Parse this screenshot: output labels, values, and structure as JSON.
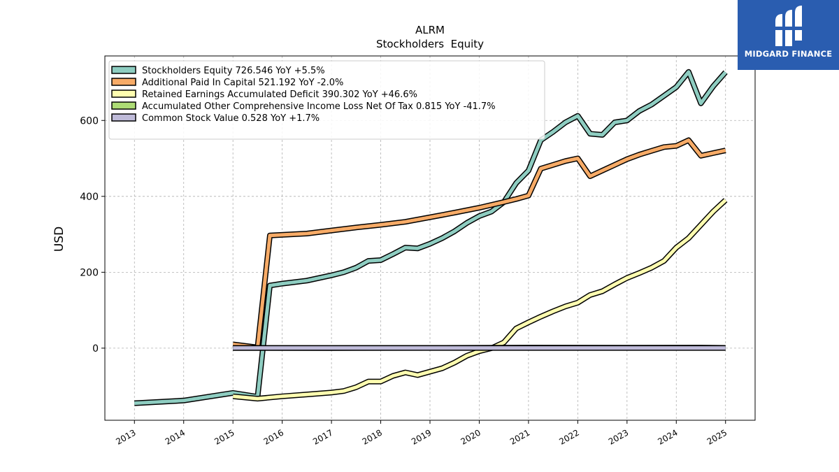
{
  "brand": {
    "name": "MIDGARD FINANCE",
    "bg_color": "#2a5db0"
  },
  "chart_data": {
    "type": "line",
    "title": "ALRM",
    "subtitle": "Stockholders  Equity",
    "ylabel": "USD",
    "xlabel": "",
    "xlim": [
      2012.4,
      2025.6
    ],
    "ylim": [
      -190,
      770
    ],
    "yticks": [
      0,
      200,
      400,
      600
    ],
    "xticks": [
      2013,
      2014,
      2015,
      2016,
      2017,
      2018,
      2019,
      2020,
      2021,
      2022,
      2023,
      2024,
      2025
    ],
    "grid": true,
    "legend_position": "top-left",
    "series": [
      {
        "name": "Stockholders Equity  726.546 YoY +5.5%",
        "color": "#8ecdc1",
        "points": [
          [
            2013.0,
            -145
          ],
          [
            2014.0,
            -138
          ],
          [
            2015.0,
            -118
          ],
          [
            2015.5,
            -128
          ],
          [
            2015.75,
            165
          ],
          [
            2016.0,
            170
          ],
          [
            2016.5,
            178
          ],
          [
            2017.0,
            192
          ],
          [
            2017.25,
            200
          ],
          [
            2017.5,
            212
          ],
          [
            2017.75,
            230
          ],
          [
            2018.0,
            232
          ],
          [
            2018.25,
            248
          ],
          [
            2018.5,
            265
          ],
          [
            2018.75,
            263
          ],
          [
            2019.0,
            275
          ],
          [
            2019.25,
            290
          ],
          [
            2019.5,
            308
          ],
          [
            2019.75,
            330
          ],
          [
            2020.0,
            348
          ],
          [
            2020.25,
            360
          ],
          [
            2020.5,
            385
          ],
          [
            2020.75,
            435
          ],
          [
            2021.0,
            468
          ],
          [
            2021.25,
            548
          ],
          [
            2021.5,
            570
          ],
          [
            2021.75,
            595
          ],
          [
            2022.0,
            612
          ],
          [
            2022.25,
            565
          ],
          [
            2022.5,
            562
          ],
          [
            2022.75,
            595
          ],
          [
            2023.0,
            600
          ],
          [
            2023.25,
            625
          ],
          [
            2023.5,
            642
          ],
          [
            2023.75,
            665
          ],
          [
            2024.0,
            688
          ],
          [
            2024.25,
            728
          ],
          [
            2024.5,
            645
          ],
          [
            2024.75,
            690
          ],
          [
            2025.0,
            727
          ]
        ]
      },
      {
        "name": "Additional Paid In Capital  521.192 YoY -2.0%",
        "color": "#f7ab67",
        "points": [
          [
            2015.0,
            10
          ],
          [
            2015.5,
            2
          ],
          [
            2015.75,
            297
          ],
          [
            2016.5,
            302
          ],
          [
            2017.0,
            310
          ],
          [
            2017.5,
            318
          ],
          [
            2018.0,
            325
          ],
          [
            2018.5,
            333
          ],
          [
            2019.0,
            345
          ],
          [
            2019.5,
            357
          ],
          [
            2020.0,
            370
          ],
          [
            2020.5,
            385
          ],
          [
            2020.75,
            393
          ],
          [
            2021.0,
            402
          ],
          [
            2021.25,
            473
          ],
          [
            2021.5,
            483
          ],
          [
            2021.75,
            493
          ],
          [
            2022.0,
            500
          ],
          [
            2022.25,
            453
          ],
          [
            2022.5,
            468
          ],
          [
            2022.75,
            483
          ],
          [
            2023.0,
            498
          ],
          [
            2023.25,
            510
          ],
          [
            2023.5,
            520
          ],
          [
            2023.75,
            530
          ],
          [
            2024.0,
            533
          ],
          [
            2024.25,
            548
          ],
          [
            2024.5,
            507
          ],
          [
            2024.75,
            514
          ],
          [
            2025.0,
            521
          ]
        ]
      },
      {
        "name": "Retained Earnings Accumulated Deficit  390.302 YoY +46.6%",
        "color": "#fefdb0",
        "points": [
          [
            2015.0,
            -127
          ],
          [
            2015.5,
            -133
          ],
          [
            2016.0,
            -127
          ],
          [
            2016.5,
            -122
          ],
          [
            2017.0,
            -117
          ],
          [
            2017.25,
            -113
          ],
          [
            2017.5,
            -103
          ],
          [
            2017.75,
            -88
          ],
          [
            2018.0,
            -88
          ],
          [
            2018.25,
            -73
          ],
          [
            2018.5,
            -64
          ],
          [
            2018.75,
            -71
          ],
          [
            2019.0,
            -62
          ],
          [
            2019.25,
            -53
          ],
          [
            2019.5,
            -38
          ],
          [
            2019.75,
            -20
          ],
          [
            2020.0,
            -8
          ],
          [
            2020.25,
            0
          ],
          [
            2020.5,
            15
          ],
          [
            2020.75,
            52
          ],
          [
            2021.0,
            68
          ],
          [
            2021.25,
            83
          ],
          [
            2021.5,
            97
          ],
          [
            2021.75,
            110
          ],
          [
            2022.0,
            120
          ],
          [
            2022.25,
            140
          ],
          [
            2022.5,
            150
          ],
          [
            2022.75,
            168
          ],
          [
            2023.0,
            185
          ],
          [
            2023.25,
            198
          ],
          [
            2023.5,
            212
          ],
          [
            2023.75,
            230
          ],
          [
            2024.0,
            265
          ],
          [
            2024.25,
            290
          ],
          [
            2024.5,
            325
          ],
          [
            2024.75,
            360
          ],
          [
            2025.0,
            390
          ]
        ]
      },
      {
        "name": "Accumulated Other Comprehensive Income Loss Net Of Tax  0.815 YoY -41.7%",
        "color": "#addc75",
        "points": [
          [
            2015.0,
            0.5
          ],
          [
            2017.0,
            0.3
          ],
          [
            2019.0,
            0.8
          ],
          [
            2021.0,
            1.4
          ],
          [
            2023.0,
            1.2
          ],
          [
            2024.5,
            1.4
          ],
          [
            2025.0,
            0.8
          ]
        ]
      },
      {
        "name": "Common Stock Value  0.528 YoY +1.7%",
        "color": "#bfbbd9",
        "points": [
          [
            2015.0,
            0.5
          ],
          [
            2017.0,
            0.5
          ],
          [
            2019.0,
            0.5
          ],
          [
            2021.0,
            0.5
          ],
          [
            2023.0,
            0.5
          ],
          [
            2025.0,
            0.53
          ]
        ]
      }
    ]
  }
}
